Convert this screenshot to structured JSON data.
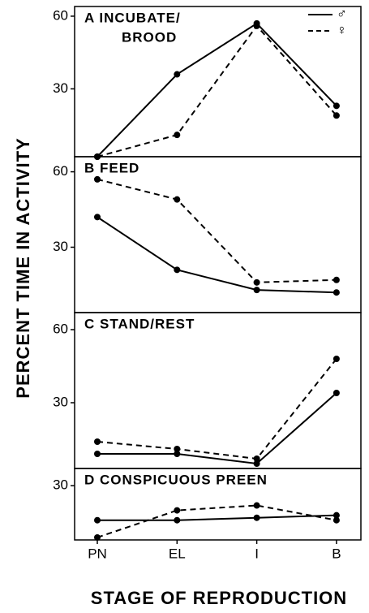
{
  "y_label": "PERCENT TIME IN ACTIVITY",
  "x_label": "STAGE OF REPRODUCTION",
  "categories": [
    "PN",
    "EL",
    "I",
    "B"
  ],
  "chart_data": [
    {
      "type": "line",
      "title": [
        "A INCUBATE/",
        "BROOD"
      ],
      "ylim": [
        2,
        64
      ],
      "yticks": [
        30,
        60
      ],
      "series": [
        {
          "name": "♂",
          "color": "#000",
          "dashed": false,
          "values": [
            2,
            36,
            57,
            23
          ]
        },
        {
          "name": "♀",
          "color": "#000",
          "dashed": true,
          "values": [
            2,
            11,
            56,
            19
          ]
        }
      ]
    },
    {
      "type": "line",
      "title": [
        "B FEED"
      ],
      "ylim": [
        4,
        66
      ],
      "yticks": [
        30,
        60
      ],
      "series": [
        {
          "color": "#000",
          "dashed": false,
          "values": [
            42,
            21,
            13,
            12
          ]
        },
        {
          "color": "#000",
          "dashed": true,
          "values": [
            57,
            49,
            16,
            17
          ]
        }
      ]
    },
    {
      "type": "line",
      "title": [
        "C STAND/REST"
      ],
      "ylim": [
        3,
        67
      ],
      "yticks": [
        30,
        60
      ],
      "series": [
        {
          "color": "#000",
          "dashed": false,
          "values": [
            9,
            9,
            5,
            34
          ]
        },
        {
          "color": "#000",
          "dashed": true,
          "values": [
            14,
            11,
            7,
            48
          ]
        }
      ]
    },
    {
      "type": "line",
      "title": [
        "D CONSPICUOUS PREEN"
      ],
      "ylim": [
        8,
        37
      ],
      "yticks": [
        30
      ],
      "series": [
        {
          "color": "#000",
          "dashed": false,
          "values": [
            16,
            16,
            17,
            18
          ]
        },
        {
          "color": "#000",
          "dashed": true,
          "values": [
            9,
            20,
            22,
            16
          ]
        }
      ]
    }
  ]
}
